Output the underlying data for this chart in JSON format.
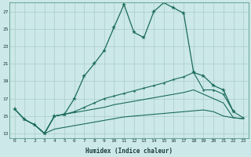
{
  "xlabel": "Humidex (Indice chaleur)",
  "bg_color": "#cce8e8",
  "grid_color": "#aacccc",
  "line_color": "#1a6b5a",
  "xlim": [
    -0.5,
    23.5
  ],
  "ylim": [
    12.5,
    28.0
  ],
  "yticks": [
    13,
    15,
    17,
    19,
    21,
    23,
    25,
    27
  ],
  "xticks": [
    0,
    1,
    2,
    3,
    4,
    5,
    6,
    7,
    8,
    9,
    10,
    11,
    12,
    13,
    14,
    15,
    16,
    17,
    18,
    19,
    20,
    21,
    22,
    23
  ],
  "line1_x": [
    0,
    1,
    2,
    3,
    4,
    5,
    6,
    7,
    8,
    9,
    10,
    11,
    12,
    13,
    14,
    15,
    16,
    17,
    18,
    19,
    20,
    21,
    22
  ],
  "line1_y": [
    15.8,
    14.6,
    14.0,
    13.0,
    15.0,
    15.2,
    17.0,
    19.6,
    21.0,
    22.5,
    25.2,
    27.8,
    24.6,
    24.0,
    27.0,
    28.0,
    27.4,
    26.8,
    20.0,
    19.6,
    18.5,
    18.0,
    15.5
  ],
  "line2_x": [
    0,
    1,
    2,
    3,
    4,
    5,
    6,
    7,
    8,
    9,
    10,
    11,
    12,
    13,
    14,
    15,
    16,
    17,
    18,
    19,
    20,
    21,
    22,
    23
  ],
  "line2_y": [
    15.8,
    14.6,
    14.0,
    13.0,
    15.0,
    15.2,
    15.5,
    16.0,
    16.5,
    17.0,
    17.3,
    17.6,
    17.9,
    18.2,
    18.5,
    18.8,
    19.2,
    19.5,
    20.0,
    18.0,
    18.0,
    17.5,
    15.5,
    14.8
  ],
  "line3_x": [
    0,
    1,
    2,
    3,
    4,
    5,
    6,
    7,
    8,
    9,
    10,
    11,
    12,
    13,
    14,
    15,
    16,
    17,
    18,
    19,
    20,
    21,
    22,
    23
  ],
  "line3_y": [
    15.8,
    14.6,
    14.0,
    13.0,
    15.0,
    15.2,
    15.4,
    15.6,
    15.8,
    16.0,
    16.3,
    16.5,
    16.7,
    16.9,
    17.1,
    17.3,
    17.5,
    17.7,
    18.0,
    17.5,
    17.0,
    16.5,
    14.8,
    14.7
  ],
  "line4_x": [
    2,
    3,
    4,
    5,
    6,
    7,
    8,
    9,
    10,
    11,
    12,
    13,
    14,
    15,
    16,
    17,
    18,
    19,
    20,
    21,
    22,
    23
  ],
  "line4_y": [
    14.0,
    13.0,
    13.5,
    13.7,
    13.9,
    14.1,
    14.3,
    14.5,
    14.7,
    14.9,
    15.0,
    15.1,
    15.2,
    15.3,
    15.4,
    15.5,
    15.6,
    15.7,
    15.5,
    15.0,
    14.8,
    14.7
  ]
}
